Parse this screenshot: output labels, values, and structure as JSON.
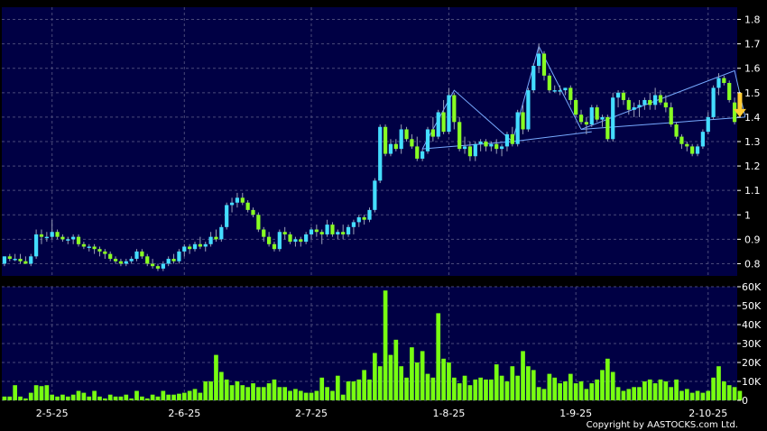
{
  "copyright": "Copyright by AASTOCKS.com Ltd.",
  "colors": {
    "background": "#000000",
    "panel": "#000044",
    "grid": "#4a4a7a",
    "up": "#44ddff",
    "down": "#88ff22",
    "volume": "#77ff11",
    "trend": "#77aaff",
    "arrow": "#ffcc33"
  },
  "chart_data": [
    {
      "type": "candlestick",
      "title": "",
      "ylim": [
        0.75,
        1.85
      ],
      "y_ticks": [
        "0.8",
        "0.9",
        "1",
        "1.1",
        "1.2",
        "1.3",
        "1.4",
        "1.5",
        "1.6",
        "1.7",
        "1.8"
      ],
      "x_ticks": [
        "2-5-25",
        "2-6-25",
        "2-7-25",
        "1-8-25",
        "1-9-25",
        "2-10-25"
      ],
      "x_tick_index": [
        9,
        34,
        58,
        84,
        108,
        133
      ],
      "grid": true,
      "trendlines": [
        {
          "points": [
            [
              79,
              1.27
            ],
            [
              85,
              1.51
            ],
            [
              96,
              1.3
            ]
          ]
        },
        {
          "points": [
            [
              79,
              1.27
            ],
            [
              96,
              1.3
            ],
            [
              111,
              1.34
            ]
          ]
        },
        {
          "points": [
            [
              96,
              1.3
            ],
            [
              101,
              1.69
            ],
            [
              109,
              1.35
            ]
          ]
        },
        {
          "points": [
            [
              109,
              1.35
            ],
            [
              138,
              1.59
            ],
            [
              140,
              1.4
            ]
          ]
        },
        {
          "points": [
            [
              109,
              1.35
            ],
            [
              140,
              1.4
            ]
          ]
        }
      ],
      "arrow": {
        "index": 139,
        "from": 1.5,
        "to": 1.4
      },
      "candles": [
        [
          0.8,
          0.83,
          0.79,
          0.83
        ],
        [
          0.83,
          0.84,
          0.81,
          0.82
        ],
        [
          0.82,
          0.84,
          0.81,
          0.82
        ],
        [
          0.82,
          0.84,
          0.8,
          0.81
        ],
        [
          0.81,
          0.83,
          0.8,
          0.8
        ],
        [
          0.8,
          0.84,
          0.79,
          0.83
        ],
        [
          0.83,
          0.94,
          0.82,
          0.92
        ],
        [
          0.92,
          0.94,
          0.88,
          0.91
        ],
        [
          0.91,
          0.93,
          0.89,
          0.91
        ],
        [
          0.91,
          0.98,
          0.9,
          0.93
        ],
        [
          0.93,
          0.94,
          0.9,
          0.91
        ],
        [
          0.91,
          0.92,
          0.89,
          0.9
        ],
        [
          0.9,
          0.91,
          0.88,
          0.9
        ],
        [
          0.9,
          0.92,
          0.88,
          0.91
        ],
        [
          0.91,
          0.92,
          0.87,
          0.88
        ],
        [
          0.88,
          0.89,
          0.86,
          0.87
        ],
        [
          0.87,
          0.88,
          0.85,
          0.87
        ],
        [
          0.87,
          0.88,
          0.84,
          0.86
        ],
        [
          0.86,
          0.87,
          0.83,
          0.85
        ],
        [
          0.85,
          0.86,
          0.82,
          0.84
        ],
        [
          0.84,
          0.85,
          0.81,
          0.82
        ],
        [
          0.82,
          0.83,
          0.8,
          0.81
        ],
        [
          0.81,
          0.82,
          0.79,
          0.8
        ],
        [
          0.8,
          0.82,
          0.79,
          0.81
        ],
        [
          0.81,
          0.83,
          0.8,
          0.82
        ],
        [
          0.82,
          0.86,
          0.81,
          0.85
        ],
        [
          0.85,
          0.86,
          0.82,
          0.83
        ],
        [
          0.83,
          0.84,
          0.79,
          0.8
        ],
        [
          0.8,
          0.82,
          0.78,
          0.79
        ],
        [
          0.79,
          0.8,
          0.77,
          0.78
        ],
        [
          0.78,
          0.81,
          0.77,
          0.8
        ],
        [
          0.8,
          0.83,
          0.79,
          0.82
        ],
        [
          0.82,
          0.84,
          0.8,
          0.81
        ],
        [
          0.81,
          0.86,
          0.8,
          0.85
        ],
        [
          0.85,
          0.88,
          0.83,
          0.87
        ],
        [
          0.87,
          0.88,
          0.84,
          0.86
        ],
        [
          0.86,
          0.89,
          0.85,
          0.88
        ],
        [
          0.88,
          0.91,
          0.86,
          0.87
        ],
        [
          0.87,
          0.89,
          0.85,
          0.88
        ],
        [
          0.88,
          0.93,
          0.87,
          0.91
        ],
        [
          0.91,
          0.94,
          0.89,
          0.9
        ],
        [
          0.9,
          0.96,
          0.89,
          0.95
        ],
        [
          0.95,
          1.05,
          0.94,
          1.04
        ],
        [
          1.04,
          1.07,
          1.01,
          1.05
        ],
        [
          1.05,
          1.09,
          1.03,
          1.07
        ],
        [
          1.07,
          1.09,
          1.04,
          1.05
        ],
        [
          1.05,
          1.06,
          1.01,
          1.02
        ],
        [
          1.02,
          1.03,
          0.99,
          1.0
        ],
        [
          1.0,
          1.01,
          0.93,
          0.94
        ],
        [
          0.94,
          0.95,
          0.89,
          0.91
        ],
        [
          0.91,
          0.93,
          0.87,
          0.88
        ],
        [
          0.88,
          0.89,
          0.85,
          0.86
        ],
        [
          0.86,
          0.94,
          0.85,
          0.93
        ],
        [
          0.93,
          0.95,
          0.9,
          0.92
        ],
        [
          0.92,
          0.93,
          0.88,
          0.89
        ],
        [
          0.89,
          0.91,
          0.87,
          0.9
        ],
        [
          0.9,
          0.91,
          0.87,
          0.89
        ],
        [
          0.89,
          0.93,
          0.88,
          0.92
        ],
        [
          0.92,
          0.95,
          0.9,
          0.94
        ],
        [
          0.94,
          0.96,
          0.91,
          0.93
        ],
        [
          0.93,
          0.94,
          0.88,
          0.92
        ],
        [
          0.92,
          0.98,
          0.91,
          0.96
        ],
        [
          0.96,
          0.97,
          0.91,
          0.92
        ],
        [
          0.92,
          0.94,
          0.9,
          0.93
        ],
        [
          0.93,
          0.96,
          0.9,
          0.92
        ],
        [
          0.92,
          0.96,
          0.91,
          0.95
        ],
        [
          0.95,
          0.98,
          0.92,
          0.97
        ],
        [
          0.97,
          1.0,
          0.95,
          0.99
        ],
        [
          0.99,
          1.0,
          0.96,
          0.98
        ],
        [
          0.98,
          1.03,
          0.97,
          1.02
        ],
        [
          1.02,
          1.15,
          1.01,
          1.14
        ],
        [
          1.14,
          1.37,
          1.13,
          1.36
        ],
        [
          1.36,
          1.37,
          1.24,
          1.25
        ],
        [
          1.25,
          1.31,
          1.24,
          1.29
        ],
        [
          1.29,
          1.31,
          1.26,
          1.27
        ],
        [
          1.27,
          1.37,
          1.25,
          1.35
        ],
        [
          1.35,
          1.36,
          1.3,
          1.31
        ],
        [
          1.31,
          1.33,
          1.27,
          1.28
        ],
        [
          1.28,
          1.32,
          1.22,
          1.23
        ],
        [
          1.23,
          1.27,
          1.22,
          1.26
        ],
        [
          1.26,
          1.36,
          1.25,
          1.35
        ],
        [
          1.35,
          1.4,
          1.3,
          1.32
        ],
        [
          1.32,
          1.43,
          1.31,
          1.42
        ],
        [
          1.42,
          1.47,
          1.33,
          1.34
        ],
        [
          1.34,
          1.52,
          1.33,
          1.49
        ],
        [
          1.49,
          1.5,
          1.35,
          1.38
        ],
        [
          1.38,
          1.4,
          1.26,
          1.27
        ],
        [
          1.27,
          1.32,
          1.25,
          1.28
        ],
        [
          1.28,
          1.3,
          1.22,
          1.24
        ],
        [
          1.24,
          1.3,
          1.22,
          1.29
        ],
        [
          1.29,
          1.31,
          1.26,
          1.3
        ],
        [
          1.3,
          1.31,
          1.26,
          1.28
        ],
        [
          1.28,
          1.3,
          1.26,
          1.29
        ],
        [
          1.29,
          1.31,
          1.25,
          1.27
        ],
        [
          1.27,
          1.29,
          1.24,
          1.28
        ],
        [
          1.28,
          1.34,
          1.26,
          1.33
        ],
        [
          1.33,
          1.36,
          1.28,
          1.29
        ],
        [
          1.29,
          1.43,
          1.28,
          1.42
        ],
        [
          1.42,
          1.45,
          1.33,
          1.35
        ],
        [
          1.35,
          1.52,
          1.34,
          1.51
        ],
        [
          1.51,
          1.62,
          1.5,
          1.61
        ],
        [
          1.61,
          1.7,
          1.58,
          1.66
        ],
        [
          1.66,
          1.67,
          1.55,
          1.57
        ],
        [
          1.57,
          1.58,
          1.5,
          1.51
        ],
        [
          1.51,
          1.53,
          1.5,
          1.51
        ],
        [
          1.51,
          1.53,
          1.49,
          1.51
        ],
        [
          1.51,
          1.52,
          1.49,
          1.52
        ],
        [
          1.52,
          1.53,
          1.45,
          1.47
        ],
        [
          1.47,
          1.48,
          1.4,
          1.41
        ],
        [
          1.41,
          1.43,
          1.37,
          1.38
        ],
        [
          1.38,
          1.4,
          1.33,
          1.37
        ],
        [
          1.37,
          1.45,
          1.36,
          1.44
        ],
        [
          1.44,
          1.45,
          1.38,
          1.39
        ],
        [
          1.39,
          1.41,
          1.36,
          1.4
        ],
        [
          1.4,
          1.41,
          1.3,
          1.31
        ],
        [
          1.31,
          1.5,
          1.3,
          1.48
        ],
        [
          1.48,
          1.51,
          1.44,
          1.5
        ],
        [
          1.5,
          1.51,
          1.45,
          1.47
        ],
        [
          1.47,
          1.48,
          1.41,
          1.43
        ],
        [
          1.43,
          1.46,
          1.4,
          1.44
        ],
        [
          1.44,
          1.47,
          1.4,
          1.45
        ],
        [
          1.45,
          1.48,
          1.43,
          1.47
        ],
        [
          1.47,
          1.5,
          1.43,
          1.45
        ],
        [
          1.45,
          1.52,
          1.43,
          1.49
        ],
        [
          1.49,
          1.51,
          1.45,
          1.46
        ],
        [
          1.46,
          1.49,
          1.42,
          1.44
        ],
        [
          1.44,
          1.46,
          1.36,
          1.37
        ],
        [
          1.37,
          1.38,
          1.31,
          1.32
        ],
        [
          1.32,
          1.33,
          1.27,
          1.29
        ],
        [
          1.29,
          1.3,
          1.26,
          1.28
        ],
        [
          1.28,
          1.29,
          1.24,
          1.25
        ],
        [
          1.25,
          1.29,
          1.24,
          1.28
        ],
        [
          1.28,
          1.35,
          1.27,
          1.34
        ],
        [
          1.34,
          1.42,
          1.33,
          1.4
        ],
        [
          1.4,
          1.53,
          1.39,
          1.52
        ],
        [
          1.52,
          1.58,
          1.49,
          1.56
        ],
        [
          1.56,
          1.57,
          1.53,
          1.54
        ],
        [
          1.54,
          1.55,
          1.46,
          1.47
        ],
        [
          1.46,
          1.48,
          1.37,
          1.38
        ]
      ]
    },
    {
      "type": "bar",
      "title": "",
      "ylim": [
        0,
        60000
      ],
      "y_ticks": [
        "0",
        "10K",
        "20K",
        "30K",
        "40K",
        "50K",
        "60K"
      ],
      "grid": true,
      "values": [
        2000,
        2000,
        8000,
        2000,
        1000,
        4000,
        8000,
        7500,
        8000,
        3000,
        2000,
        3000,
        2000,
        3000,
        5000,
        4000,
        2000,
        5000,
        2000,
        1000,
        3000,
        2000,
        2000,
        3000,
        1000,
        5000,
        2000,
        1000,
        3000,
        2000,
        5000,
        3000,
        3000,
        3500,
        4000,
        5000,
        6000,
        4000,
        10000,
        10000,
        24000,
        15000,
        11000,
        8000,
        10000,
        8000,
        7000,
        9000,
        7000,
        7000,
        9000,
        11000,
        7000,
        7000,
        5000,
        6000,
        5000,
        4000,
        4000,
        5000,
        12000,
        7000,
        5000,
        13000,
        3000,
        10000,
        10000,
        11000,
        16000,
        11000,
        25000,
        18000,
        58000,
        24000,
        32000,
        18000,
        12000,
        28000,
        20000,
        26000,
        14000,
        12000,
        46000,
        22000,
        20000,
        12000,
        9000,
        13000,
        8000,
        11000,
        12000,
        11000,
        11000,
        19000,
        13000,
        10000,
        18000,
        13000,
        26000,
        18000,
        16000,
        7000,
        6000,
        14000,
        12000,
        9000,
        10000,
        14000,
        9000,
        10000,
        6000,
        9000,
        11000,
        16000,
        22000,
        15000,
        7000,
        5000,
        6000,
        7000,
        7000,
        10000,
        11000,
        9000,
        11000,
        10000,
        7000,
        11000,
        5000,
        6000,
        4000,
        5000,
        4000,
        5000,
        12000,
        18000,
        10000,
        8000,
        7000,
        5000
      ]
    }
  ]
}
